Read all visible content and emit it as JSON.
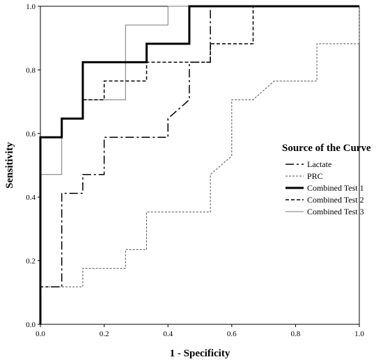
{
  "chart_data": {
    "type": "line",
    "title": "",
    "xlabel": "1 - Specificity",
    "ylabel": "Sensitivity",
    "xlim": [
      0,
      1
    ],
    "ylim": [
      0,
      1
    ],
    "x_ticks": [
      "0.0",
      "0.2",
      "0.4",
      "0.6",
      "0.8",
      "1.0"
    ],
    "y_ticks": [
      "0.0",
      "0.2",
      "0.4",
      "0.6",
      "0.8",
      "1.0"
    ],
    "grid": false,
    "legend": {
      "title": "Source of the Curve",
      "placement": "right"
    },
    "series": [
      {
        "name": "Lactate",
        "style": "dashdot",
        "color": "#000000",
        "points": [
          [
            0,
            0
          ],
          [
            0,
            0.118
          ],
          [
            0.067,
            0.118
          ],
          [
            0.067,
            0.412
          ],
          [
            0.133,
            0.412
          ],
          [
            0.133,
            0.471
          ],
          [
            0.2,
            0.471
          ],
          [
            0.2,
            0.588
          ],
          [
            0.4,
            0.588
          ],
          [
            0.4,
            0.647
          ],
          [
            0.467,
            0.706
          ],
          [
            0.467,
            0.824
          ],
          [
            0.533,
            0.824
          ],
          [
            0.533,
            1.0
          ],
          [
            1.0,
            1.0
          ]
        ]
      },
      {
        "name": "PRC",
        "style": "dotted",
        "color": "#555555",
        "points": [
          [
            0,
            0
          ],
          [
            0,
            0.118
          ],
          [
            0.133,
            0.118
          ],
          [
            0.133,
            0.176
          ],
          [
            0.267,
            0.176
          ],
          [
            0.267,
            0.235
          ],
          [
            0.333,
            0.235
          ],
          [
            0.333,
            0.353
          ],
          [
            0.533,
            0.353
          ],
          [
            0.533,
            0.471
          ],
          [
            0.6,
            0.529
          ],
          [
            0.6,
            0.706
          ],
          [
            0.667,
            0.706
          ],
          [
            0.733,
            0.765
          ],
          [
            0.867,
            0.765
          ],
          [
            0.867,
            0.882
          ],
          [
            0.933,
            0.882
          ],
          [
            0.933,
            0.882
          ],
          [
            1.0,
            0.882
          ],
          [
            1.0,
            1.0
          ]
        ]
      },
      {
        "name": "Combined Test 1",
        "style": "thick",
        "color": "#000000",
        "points": [
          [
            0,
            0
          ],
          [
            0,
            0.588
          ],
          [
            0.067,
            0.588
          ],
          [
            0.067,
            0.647
          ],
          [
            0.133,
            0.647
          ],
          [
            0.133,
            0.824
          ],
          [
            0.333,
            0.824
          ],
          [
            0.333,
            0.882
          ],
          [
            0.467,
            0.882
          ],
          [
            0.467,
            1.0
          ],
          [
            1.0,
            1.0
          ]
        ]
      },
      {
        "name": "Combined Test 2",
        "style": "dashed",
        "color": "#000000",
        "points": [
          [
            0,
            0
          ],
          [
            0,
            0.588
          ],
          [
            0.067,
            0.588
          ],
          [
            0.067,
            0.647
          ],
          [
            0.133,
            0.647
          ],
          [
            0.133,
            0.706
          ],
          [
            0.2,
            0.706
          ],
          [
            0.2,
            0.765
          ],
          [
            0.333,
            0.765
          ],
          [
            0.333,
            0.824
          ],
          [
            0.533,
            0.824
          ],
          [
            0.533,
            0.882
          ],
          [
            0.667,
            0.882
          ],
          [
            0.667,
            1.0
          ],
          [
            1.0,
            1.0
          ]
        ]
      },
      {
        "name": "Combined Test 3",
        "style": "thin",
        "color": "#777777",
        "points": [
          [
            0,
            0
          ],
          [
            0,
            0.471
          ],
          [
            0.067,
            0.471
          ],
          [
            0.067,
            0.647
          ],
          [
            0.133,
            0.647
          ],
          [
            0.133,
            0.706
          ],
          [
            0.267,
            0.706
          ],
          [
            0.267,
            0.941
          ],
          [
            0.4,
            0.941
          ],
          [
            0.4,
            1.0
          ],
          [
            1.0,
            1.0
          ]
        ]
      }
    ]
  }
}
